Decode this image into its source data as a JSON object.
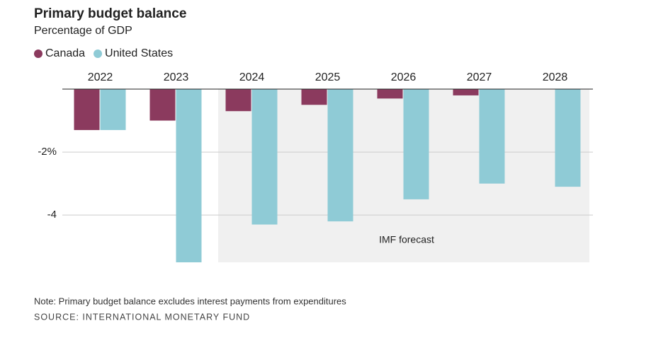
{
  "chart_data": {
    "type": "bar",
    "title": "Primary budget balance",
    "subtitle": "Percentage of GDP",
    "categories": [
      "2022",
      "2023",
      "2024",
      "2025",
      "2026",
      "2027",
      "2028"
    ],
    "series": [
      {
        "name": "Canada",
        "color": "#8b3a5e",
        "values": [
          -1.3,
          -1.0,
          -0.7,
          -0.5,
          -0.3,
          -0.2,
          0
        ]
      },
      {
        "name": "United States",
        "color": "#8fcbd6",
        "values": [
          -1.3,
          -5.5,
          -4.3,
          -4.2,
          -3.5,
          -3.0,
          -3.1
        ]
      }
    ],
    "ylim": [
      -5.5,
      0
    ],
    "yticks": [
      {
        "value": -2,
        "label": "-2%"
      },
      -4
    ],
    "grid": true,
    "annotation": "IMF forecast",
    "note": "Note: Primary budget balance excludes interest payments from expenditures",
    "source": "SOURCE: INTERNATIONAL MONETARY FUND"
  }
}
